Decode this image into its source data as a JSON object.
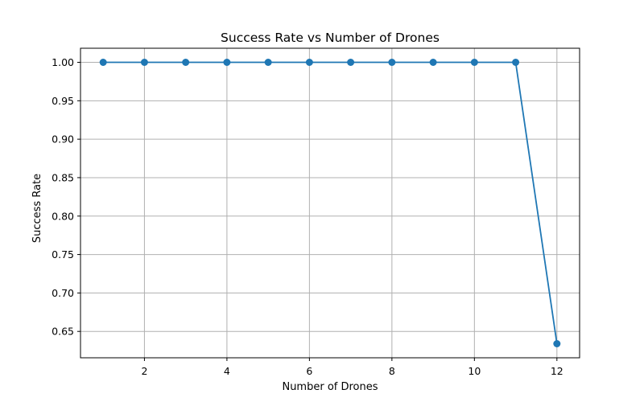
{
  "chart_data": {
    "type": "line",
    "title": "Success Rate vs Number of Drones",
    "xlabel": "Number of Drones",
    "ylabel": "Success Rate",
    "x": [
      1,
      2,
      3,
      4,
      5,
      6,
      7,
      8,
      9,
      10,
      11,
      12
    ],
    "series": [
      {
        "values": [
          1.0,
          1.0,
          1.0,
          1.0,
          1.0,
          1.0,
          1.0,
          1.0,
          1.0,
          1.0,
          1.0,
          0.634
        ]
      }
    ],
    "xlim": [
      0.45,
      12.55
    ],
    "ylim": [
      0.6157,
      1.0183
    ],
    "xticks": [
      2,
      4,
      6,
      8,
      10,
      12
    ],
    "xtick_labels": [
      "2",
      "4",
      "6",
      "8",
      "10",
      "12"
    ],
    "yticks": [
      0.65,
      0.7,
      0.75,
      0.8,
      0.85,
      0.9,
      0.95,
      1.0
    ],
    "ytick_labels": [
      "0.65",
      "0.70",
      "0.75",
      "0.80",
      "0.85",
      "0.90",
      "0.95",
      "1.00"
    ],
    "grid": true,
    "marker": "circle",
    "colors": {
      "series": "#1f77b4",
      "grid": "#b0b0b0",
      "axes": "#000000"
    }
  }
}
